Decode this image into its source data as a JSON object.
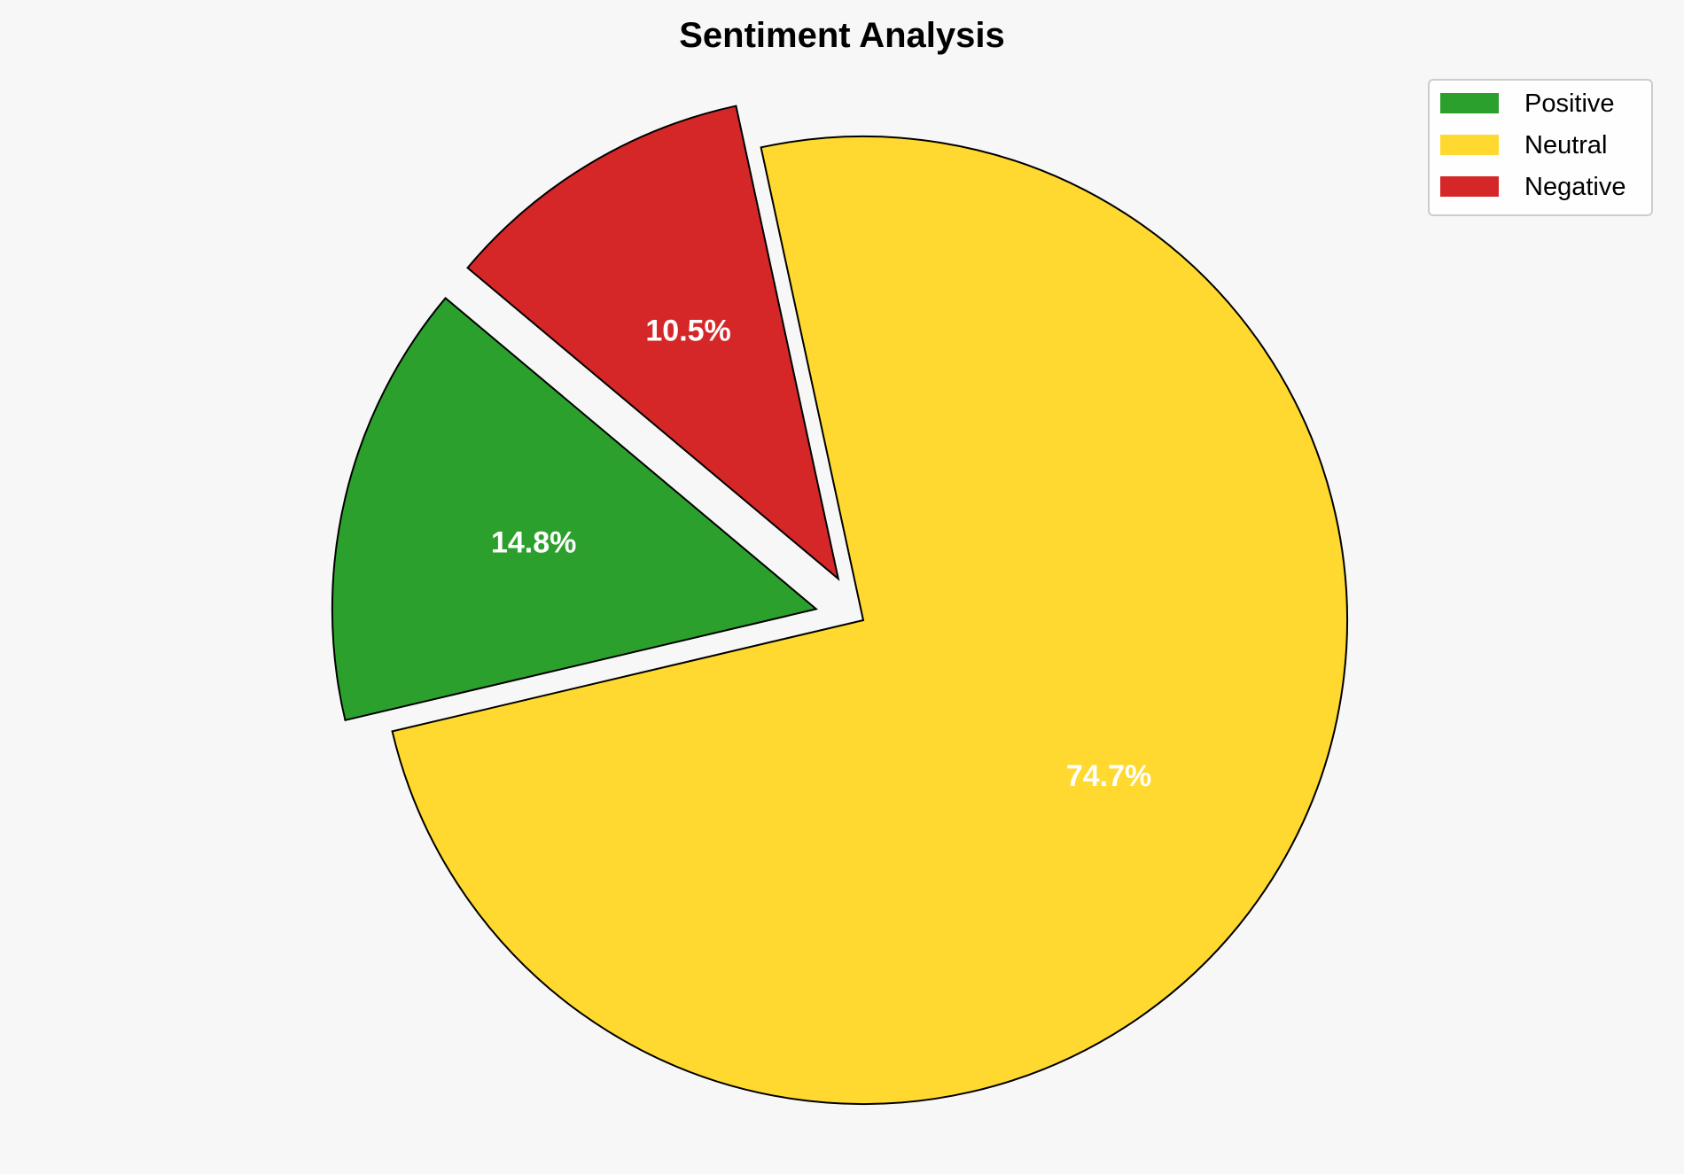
{
  "chart_data": {
    "type": "pie",
    "title": "Sentiment Analysis",
    "categories": [
      "Positive",
      "Neutral",
      "Negative"
    ],
    "values": [
      14.8,
      74.7,
      10.5
    ],
    "labels": [
      "14.8%",
      "74.7%",
      "10.5%"
    ],
    "colors": [
      "#2ca02c",
      "#ffd92f",
      "#d62728"
    ],
    "explode": [
      0.1,
      0,
      0.1
    ],
    "start_angle": 140,
    "direction": "counterclockwise",
    "legend_position": "top-right",
    "edge_color": "#000000",
    "label_color": "#ffffff",
    "background": "#f7f7f7"
  }
}
